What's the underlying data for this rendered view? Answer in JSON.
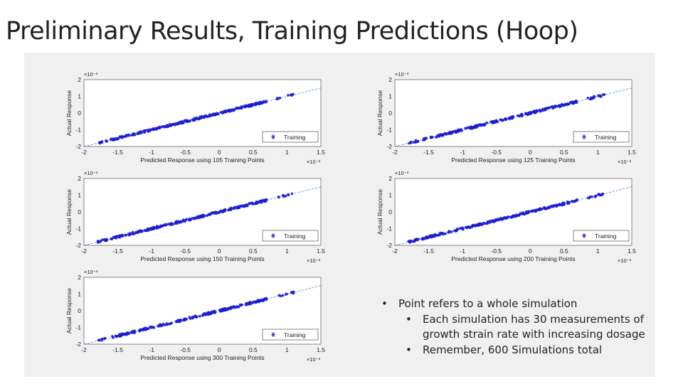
{
  "slide": {
    "title": "Preliminary Results, Training Predictions (Hoop)"
  },
  "bullets": {
    "main": "Point refers to a whole simulation",
    "sub": [
      "Each simulation has 30 measurements of growth strain rate with increasing dosage",
      "Remember, 600 Simulations total"
    ]
  },
  "colors": {
    "points": "#1d1dd0",
    "fit_line": "#3d8bd8",
    "background_panel": "#f0f0f0",
    "plot_bg": "#ffffff"
  },
  "chart_data": [
    {
      "type": "scatter",
      "xlabel": "Predicted Response using 105 Training Points",
      "ylabel": "Actual Response",
      "x_exponent": "×10⁻³",
      "y_exponent": "×10⁻³",
      "xlim": [
        -2,
        1.5
      ],
      "ylim": [
        -2,
        2
      ],
      "xticks": [
        "-2",
        "-1.5",
        "-1",
        "-0.5",
        "0",
        "0.5",
        "1",
        "1.5"
      ],
      "yticks": [
        "-2",
        "-1",
        "0",
        "1",
        "2"
      ],
      "legend": {
        "label": "Training",
        "position": "bottom-right"
      },
      "series": [
        {
          "name": "Training",
          "x_range": [
            -1.8,
            1.1
          ],
          "slope": 1.0,
          "reference_line": true
        }
      ]
    },
    {
      "type": "scatter",
      "xlabel": "Predicted Response using 125 Training Points",
      "ylabel": "Actual Response",
      "x_exponent": "×10⁻³",
      "y_exponent": "×10⁻³",
      "xlim": [
        -2,
        1.5
      ],
      "ylim": [
        -2,
        2
      ],
      "xticks": [
        "-2",
        "-1.5",
        "-1",
        "-0.5",
        "0",
        "0.5",
        "1",
        "1.5"
      ],
      "yticks": [
        "-2",
        "-1",
        "0",
        "1",
        "2"
      ],
      "legend": {
        "label": "Training",
        "position": "bottom-right"
      },
      "series": [
        {
          "name": "Training",
          "x_range": [
            -1.8,
            1.1
          ],
          "slope": 1.0,
          "reference_line": true
        }
      ]
    },
    {
      "type": "scatter",
      "xlabel": "Predicted Response using 150 Training Points",
      "ylabel": "Actual Response",
      "x_exponent": "×10⁻³",
      "y_exponent": "×10⁻³",
      "xlim": [
        -2,
        1.5
      ],
      "ylim": [
        -2,
        2
      ],
      "xticks": [
        "-2",
        "-1.5",
        "-1",
        "-0.5",
        "0",
        "0.5",
        "1",
        "1.5"
      ],
      "yticks": [
        "-2",
        "-1",
        "0",
        "1",
        "2"
      ],
      "legend": {
        "label": "Training",
        "position": "bottom-right"
      },
      "series": [
        {
          "name": "Training",
          "x_range": [
            -1.8,
            1.1
          ],
          "slope": 1.0,
          "reference_line": true
        }
      ]
    },
    {
      "type": "scatter",
      "xlabel": "Predicted Response using 200 Training Points",
      "ylabel": "Actual Response",
      "x_exponent": "×10⁻³",
      "y_exponent": "×10⁻³",
      "xlim": [
        -2,
        1.5
      ],
      "ylim": [
        -2,
        2
      ],
      "xticks": [
        "-2",
        "-1.5",
        "-1",
        "-0.5",
        "0",
        "0.5",
        "1",
        "1.5"
      ],
      "yticks": [
        "-2",
        "-1",
        "0",
        "1",
        "2"
      ],
      "legend": {
        "label": "Training",
        "position": "bottom-right"
      },
      "series": [
        {
          "name": "Training",
          "x_range": [
            -1.8,
            1.1
          ],
          "slope": 1.0,
          "reference_line": true
        }
      ]
    },
    {
      "type": "scatter",
      "xlabel": "Predicted Response using 300 Training Points",
      "ylabel": "Actual Response",
      "x_exponent": "×10⁻³",
      "y_exponent": "×10⁻³",
      "xlim": [
        -2,
        1.5
      ],
      "ylim": [
        -2,
        2
      ],
      "xticks": [
        "-2",
        "-1.5",
        "-1",
        "-0.5",
        "0",
        "0.5",
        "1",
        "1.5"
      ],
      "yticks": [
        "-2",
        "-1",
        "0",
        "1",
        "2"
      ],
      "legend": {
        "label": "Training",
        "position": "bottom-right"
      },
      "series": [
        {
          "name": "Training",
          "x_range": [
            -1.8,
            1.1
          ],
          "slope": 1.0,
          "reference_line": true
        }
      ]
    }
  ]
}
